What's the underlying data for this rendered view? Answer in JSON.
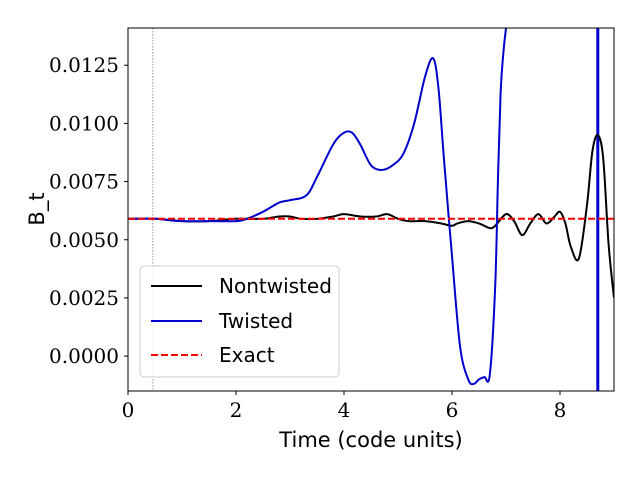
{
  "chart_data": {
    "type": "line",
    "xlabel": "Time (code units)",
    "ylabel": "B_t",
    "xlim": [
      0,
      9
    ],
    "ylim": [
      -0.0015,
      0.0141
    ],
    "xticks": [
      0,
      2,
      4,
      6,
      8
    ],
    "xtick_labels": [
      "0",
      "2",
      "4",
      "6",
      "8"
    ],
    "yticks": [
      0.0,
      0.0025,
      0.005,
      0.0075,
      0.01,
      0.0125
    ],
    "ytick_labels": [
      "0.0000",
      "0.0025",
      "0.0050",
      "0.0075",
      "0.0100",
      "0.0125"
    ],
    "grid": false,
    "legend_position": "lower-left",
    "vlines": [
      {
        "x": 0.46,
        "color": "#808080",
        "style": "dotted"
      },
      {
        "x": 8.7,
        "color": "#0000cc",
        "style": "solid"
      }
    ],
    "series": [
      {
        "name": "Nontwisted",
        "color": "#000000",
        "style": "solid",
        "x": [
          0,
          0.5,
          1.0,
          1.5,
          2.0,
          2.5,
          2.8,
          3.0,
          3.2,
          3.5,
          3.8,
          4.0,
          4.3,
          4.6,
          4.8,
          5.0,
          5.2,
          5.5,
          5.8,
          6.0,
          6.1,
          6.3,
          6.5,
          6.7,
          6.8,
          7.0,
          7.15,
          7.3,
          7.45,
          7.6,
          7.75,
          7.9,
          8.0,
          8.1,
          8.2,
          8.35,
          8.5,
          8.6,
          8.7,
          8.8,
          8.9,
          9.0
        ],
        "y": [
          0.0059,
          0.0059,
          0.0058,
          0.0058,
          0.0059,
          0.0059,
          0.006,
          0.006,
          0.0059,
          0.0059,
          0.006,
          0.0061,
          0.006,
          0.006,
          0.0061,
          0.0059,
          0.0058,
          0.0058,
          0.0057,
          0.0056,
          0.0057,
          0.0058,
          0.0057,
          0.0055,
          0.0056,
          0.0061,
          0.0058,
          0.0052,
          0.0057,
          0.0061,
          0.0057,
          0.006,
          0.0062,
          0.0057,
          0.0047,
          0.0042,
          0.0065,
          0.0088,
          0.0095,
          0.0085,
          0.0048,
          0.0025
        ]
      },
      {
        "name": "Twisted",
        "color": "#0000cc",
        "style": "solid",
        "x": [
          0,
          0.5,
          1.0,
          1.5,
          2.0,
          2.2,
          2.5,
          2.8,
          3.0,
          3.3,
          3.5,
          3.8,
          4.0,
          4.15,
          4.3,
          4.5,
          4.7,
          4.9,
          5.1,
          5.3,
          5.5,
          5.65,
          5.75,
          5.85,
          6.0,
          6.15,
          6.3,
          6.4,
          6.5,
          6.6,
          6.7,
          6.8,
          6.85,
          6.9,
          6.95,
          7.0
        ],
        "y": [
          0.0059,
          0.0059,
          0.0058,
          0.0058,
          0.0058,
          0.0059,
          0.0062,
          0.0066,
          0.0067,
          0.0069,
          0.0077,
          0.0091,
          0.0096,
          0.0096,
          0.0091,
          0.0082,
          0.008,
          0.0082,
          0.0087,
          0.01,
          0.012,
          0.0128,
          0.0115,
          0.0085,
          0.0043,
          0.0004,
          -0.001,
          -0.0012,
          -0.001,
          -0.0009,
          -0.0008,
          0.003,
          0.0075,
          0.0113,
          0.013,
          0.0141
        ]
      },
      {
        "name": "Exact",
        "color": "#ff0000",
        "style": "dashed",
        "x": [
          0,
          9
        ],
        "y": [
          0.0059,
          0.0059
        ]
      }
    ]
  }
}
